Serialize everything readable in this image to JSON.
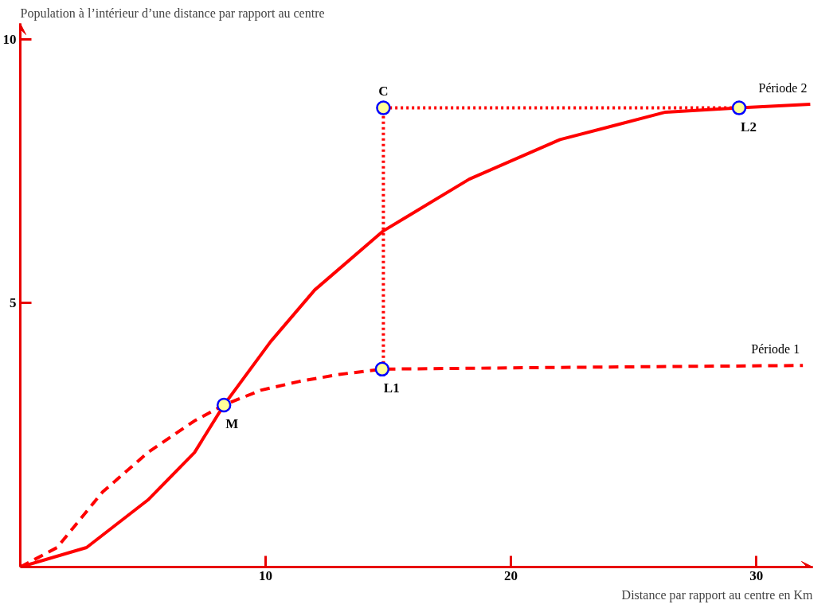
{
  "chart_data": {
    "type": "line",
    "xlabel": "Distance par rapport au centre en Km",
    "ylabel": "Population à l’intérieur d’une distance par rapport au centre",
    "xlim": [
      0,
      32.3
    ],
    "ylim": [
      0,
      10.3
    ],
    "xticks": [
      10,
      20,
      30
    ],
    "yticks": [
      5,
      10
    ],
    "grid": false,
    "series": [
      {
        "name": "Période 1",
        "color": "#ff0000",
        "line_style": "dashed",
        "x": [
          0,
          1.5,
          3.35,
          5.2,
          7.1,
          8.3,
          9.8,
          11.4,
          13.0,
          14.75,
          21.4,
          31.9
        ],
        "values": [
          0,
          0.37,
          1.42,
          2.17,
          2.77,
          3.07,
          3.35,
          3.52,
          3.65,
          3.75,
          3.78,
          3.82
        ]
      },
      {
        "name": "Période 2",
        "color": "#ff0000",
        "line_style": "solid",
        "x": [
          0,
          2.7,
          5.2,
          7.1,
          8.3,
          10.2,
          12.0,
          14.8,
          18.3,
          22.0,
          26.3,
          29.3,
          32.2
        ],
        "values": [
          0,
          0.37,
          1.27,
          2.17,
          3.07,
          4.27,
          5.25,
          6.37,
          7.35,
          8.1,
          8.62,
          8.7,
          8.77
        ]
      },
      {
        "color": "#ff0000",
        "line_style": "dotted",
        "x": [
          14.8,
          14.8,
          29.3
        ],
        "values": [
          3.75,
          8.7,
          8.7
        ]
      },
      {
        "type": "scatter",
        "color": "#ffff99",
        "marker": "circle",
        "x": [
          8.3,
          14.75,
          14.8,
          29.3
        ],
        "values": [
          3.07,
          3.75,
          8.7,
          8.7
        ]
      }
    ],
    "annotations": [
      {
        "text": "M",
        "x": 8.3,
        "y": 3.07
      },
      {
        "text": "L1",
        "x": 14.75,
        "y": 3.75
      },
      {
        "text": "C",
        "x": 14.8,
        "y": 8.7
      },
      {
        "text": "L2",
        "x": 29.3,
        "y": 8.7
      }
    ]
  }
}
